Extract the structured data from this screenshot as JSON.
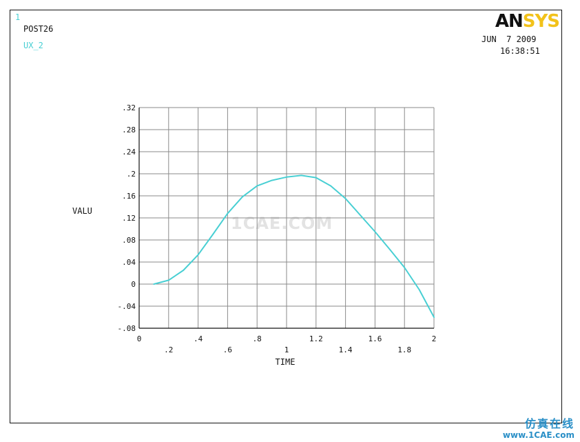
{
  "window_number": "1",
  "post_label": "POST26",
  "variable_label": "UX_2",
  "logo": {
    "an": "AN",
    "sys": "SYS"
  },
  "date": "JUN  7 2009",
  "time": "16:38:51",
  "watermark": {
    "center": "1CAE.COM",
    "cn": "仿真在线",
    "url": "www.1CAE.com"
  },
  "colors": {
    "curve": "#48cfd3",
    "grid": "#8a8a8a",
    "frame": "#111111",
    "logo_accent": "#f2c21a"
  },
  "chart_data": {
    "type": "line",
    "xlabel": "TIME",
    "ylabel": "VALU",
    "xlim": [
      0,
      2
    ],
    "ylim": [
      -0.08,
      0.32
    ],
    "grid": true,
    "x_ticks": [
      0,
      0.2,
      0.4,
      0.6,
      0.8,
      1,
      1.2,
      1.4,
      1.6,
      1.8,
      2
    ],
    "x_tick_labels": [
      "0",
      ".2",
      ".4",
      ".6",
      ".8",
      "1",
      "1.2",
      "1.4",
      "1.6",
      "1.8",
      "2"
    ],
    "y_ticks": [
      -0.08,
      -0.04,
      0,
      0.04,
      0.08,
      0.12,
      0.16,
      0.2,
      0.24,
      0.28,
      0.32
    ],
    "y_tick_labels": [
      "-.08",
      "-.04",
      "0",
      ".04",
      ".08",
      ".12",
      ".16",
      ".2",
      ".24",
      ".28",
      ".32"
    ],
    "series": [
      {
        "name": "UX_2",
        "x": [
          0.1,
          0.2,
          0.3,
          0.4,
          0.5,
          0.6,
          0.7,
          0.8,
          0.9,
          1.0,
          1.1,
          1.2,
          1.3,
          1.4,
          1.5,
          1.6,
          1.7,
          1.8,
          1.9,
          2.0
        ],
        "y": [
          0.0,
          0.007,
          0.025,
          0.053,
          0.09,
          0.128,
          0.158,
          0.178,
          0.188,
          0.194,
          0.197,
          0.193,
          0.178,
          0.155,
          0.125,
          0.095,
          0.063,
          0.03,
          -0.01,
          -0.06
        ]
      }
    ]
  }
}
